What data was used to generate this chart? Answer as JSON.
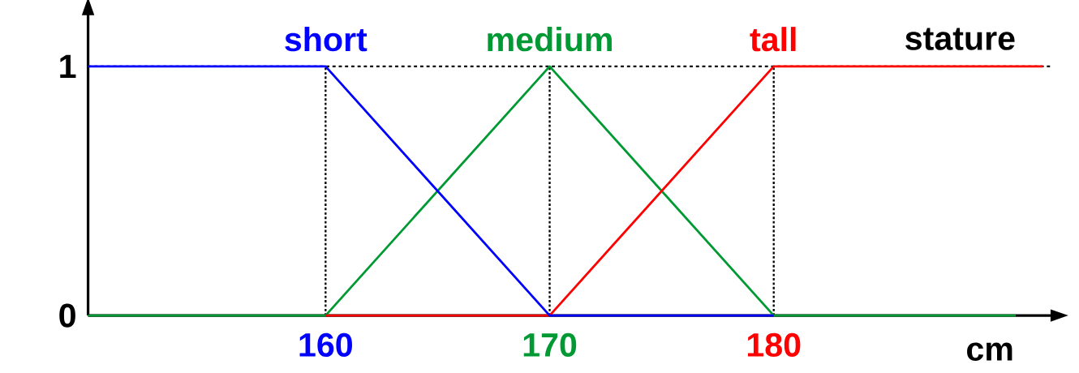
{
  "chart_data": {
    "type": "line",
    "title": "stature",
    "xlabel": "cm",
    "xlim": [
      149.4,
      192.4
    ],
    "ylim": [
      0,
      1.21
    ],
    "xticks": [
      160,
      170,
      180
    ],
    "yticks": [
      0,
      1
    ],
    "grid": false,
    "marker": "none",
    "line_style": "solid",
    "series": [
      {
        "name": "medium",
        "color": "#009933",
        "x": [
          149.4,
          160,
          170,
          180,
          190.8
        ],
        "values": [
          0,
          0,
          1,
          0,
          0
        ]
      },
      {
        "name": "tall",
        "color": "#ff0000",
        "x": [
          160,
          170,
          180,
          192
        ],
        "values": [
          0,
          0,
          1,
          1
        ]
      },
      {
        "name": "short",
        "color": "#0000ff",
        "x": [
          149.4,
          160,
          170,
          180
        ],
        "values": [
          1,
          1,
          0,
          0
        ]
      }
    ],
    "ref_lines": [
      {
        "axis": "y",
        "value": 1,
        "color": "#000000",
        "line_style": "dashed"
      },
      {
        "axis": "x",
        "value": 160,
        "color": "#000000",
        "line_style": "dotted"
      },
      {
        "axis": "x",
        "value": 170,
        "color": "#000000",
        "line_style": "dotted"
      },
      {
        "axis": "x",
        "value": 180,
        "color": "#000000",
        "line_style": "dotted"
      }
    ]
  }
}
